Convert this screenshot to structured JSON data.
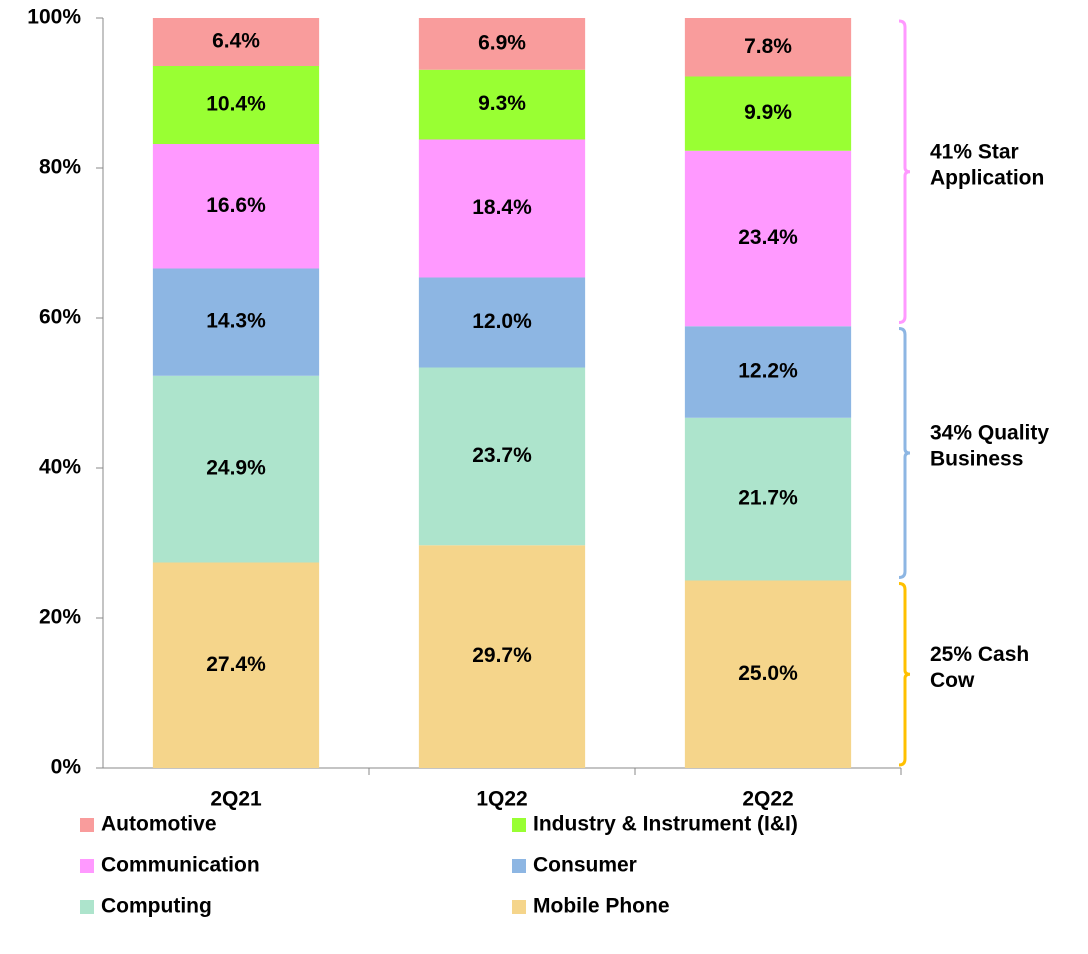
{
  "chart_data": {
    "type": "stacked_bar",
    "categories": [
      "2Q21",
      "1Q22",
      "2Q22"
    ],
    "series": [
      {
        "name": "Mobile Phone",
        "color": "#f5d58b",
        "values": [
          27.4,
          29.7,
          25.0
        ],
        "value_labels": [
          "27.4%",
          "29.7%",
          "25.0%"
        ]
      },
      {
        "name": "Computing",
        "color": "#ade4cc",
        "values": [
          24.9,
          23.7,
          21.7
        ],
        "value_labels": [
          "24.9%",
          "23.7%",
          "21.7%"
        ]
      },
      {
        "name": "Consumer",
        "color": "#8db6e3",
        "values": [
          14.3,
          12.0,
          12.2
        ],
        "value_labels": [
          "14.3%",
          "12.0%",
          "12.2%"
        ]
      },
      {
        "name": "Communication",
        "color": "#ff99ff",
        "values": [
          16.6,
          18.4,
          23.4
        ],
        "value_labels": [
          "16.6%",
          "18.4%",
          "23.4%"
        ]
      },
      {
        "name": "Industry & Instrument (I&I)",
        "color": "#99ff33",
        "values": [
          10.4,
          9.3,
          9.9
        ],
        "value_labels": [
          "10.4%",
          "9.3%",
          "9.9%"
        ]
      },
      {
        "name": "Automotive",
        "color": "#f99c9c",
        "values": [
          6.4,
          6.9,
          7.8
        ],
        "value_labels": [
          "6.4%",
          "6.9%",
          "7.8%"
        ]
      }
    ],
    "ylim": [
      0,
      100
    ],
    "yticks": [
      {
        "value": 0,
        "label": "0%"
      },
      {
        "value": 20,
        "label": "20%"
      },
      {
        "value": 40,
        "label": "40%"
      },
      {
        "value": 60,
        "label": "60%"
      },
      {
        "value": 80,
        "label": "80%"
      },
      {
        "value": 100,
        "label": "100%"
      }
    ],
    "annotations": [
      {
        "lines": [
          "41% Star",
          "Application"
        ],
        "color": "#ff99ff",
        "range": [
          59,
          100
        ]
      },
      {
        "lines": [
          "34% Quality",
          "Business"
        ],
        "color": "#8db6e3",
        "range": [
          25,
          59
        ]
      },
      {
        "lines": [
          "25% Cash",
          "Cow"
        ],
        "color": "#ffc000",
        "range": [
          0,
          25
        ]
      }
    ]
  }
}
